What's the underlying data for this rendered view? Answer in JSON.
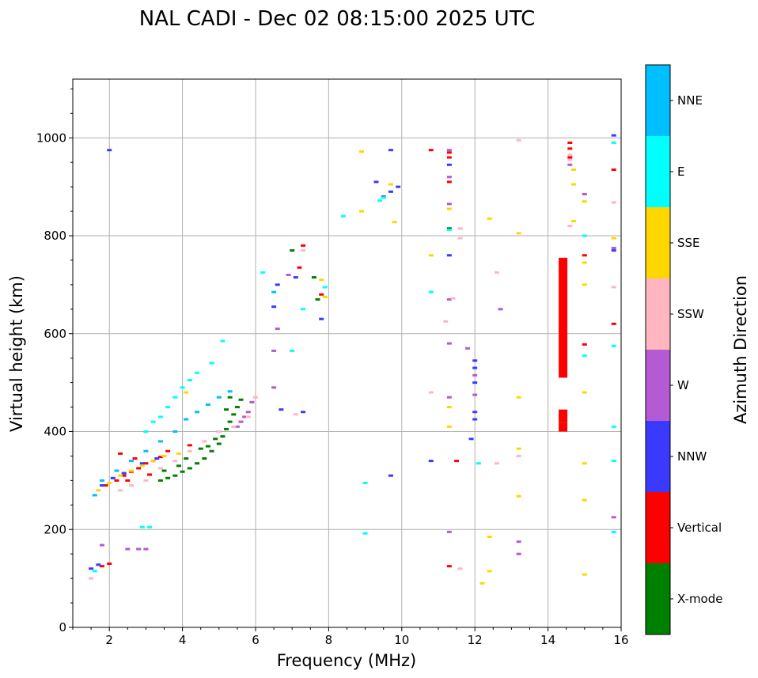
{
  "chart_data": {
    "type": "scatter",
    "title": "NAL CADI - Dec 02 08:15:00 2025 UTC",
    "xlabel": "Frequency (MHz)",
    "ylabel": "Virtual height (km)",
    "xlim": [
      1,
      16
    ],
    "ylim": [
      0,
      1120
    ],
    "xticks": [
      2,
      4,
      6,
      8,
      10,
      12,
      14,
      16
    ],
    "yticks": [
      0,
      200,
      400,
      600,
      800,
      1000
    ],
    "xtick_labels": [
      "2",
      "4",
      "6",
      "8",
      "10",
      "12",
      "14",
      "16"
    ],
    "ytick_labels": [
      "0",
      "200",
      "400",
      "600",
      "800",
      "1000"
    ],
    "grid": true,
    "colorbar": {
      "label": "Azimuth Direction",
      "categories": [
        {
          "name": "X-mode",
          "color": "#008000"
        },
        {
          "name": "Vertical",
          "color": "#ff0000"
        },
        {
          "name": "NNW",
          "color": "#3a3aff"
        },
        {
          "name": "W",
          "color": "#b45ad2"
        },
        {
          "name": "SSW",
          "color": "#ffb6c1"
        },
        {
          "name": "SSE",
          "color": "#ffd700"
        },
        {
          "name": "E",
          "color": "#00ffff"
        },
        {
          "name": "NNE",
          "color": "#00bfff"
        }
      ]
    },
    "series": [
      {
        "name": "X-mode",
        "color": "#008000",
        "points": [
          [
            3.4,
            300
          ],
          [
            3.6,
            305
          ],
          [
            3.8,
            310
          ],
          [
            4.0,
            318
          ],
          [
            4.2,
            325
          ],
          [
            4.4,
            335
          ],
          [
            4.6,
            345
          ],
          [
            4.8,
            360
          ],
          [
            5.0,
            375
          ],
          [
            5.1,
            390
          ],
          [
            5.2,
            405
          ],
          [
            5.3,
            420
          ],
          [
            5.4,
            435
          ],
          [
            5.5,
            450
          ],
          [
            5.6,
            465
          ],
          [
            5.3,
            470
          ],
          [
            3.5,
            320
          ],
          [
            4.1,
            345
          ],
          [
            4.5,
            365
          ],
          [
            4.9,
            385
          ],
          [
            5.0,
            400
          ],
          [
            5.2,
            445
          ],
          [
            4.7,
            370
          ],
          [
            3.9,
            330
          ],
          [
            7.6,
            715
          ],
          [
            7.7,
            670
          ],
          [
            11.3,
            815
          ],
          [
            7.0,
            770
          ]
        ]
      },
      {
        "name": "Vertical",
        "color": "#ff0000",
        "points": [
          [
            1.8,
            125
          ],
          [
            2.0,
            130
          ],
          [
            2.2,
            300
          ],
          [
            2.4,
            310
          ],
          [
            2.6,
            318
          ],
          [
            2.8,
            325
          ],
          [
            3.0,
            335
          ],
          [
            3.2,
            340
          ],
          [
            3.4,
            348
          ],
          [
            3.6,
            360
          ],
          [
            2.5,
            300
          ],
          [
            1.9,
            290
          ],
          [
            2.3,
            355
          ],
          [
            2.7,
            345
          ],
          [
            3.1,
            312
          ],
          [
            4.2,
            372
          ],
          [
            7.3,
            780
          ],
          [
            7.2,
            735
          ],
          [
            7.8,
            680
          ],
          [
            11.3,
            910
          ],
          [
            11.3,
            960
          ],
          [
            11.3,
            970
          ],
          [
            11.3,
            125
          ],
          [
            11.5,
            340
          ],
          [
            14.6,
            990
          ],
          [
            14.6,
            978
          ],
          [
            14.6,
            960
          ],
          [
            15.0,
            760
          ],
          [
            15.0,
            578
          ],
          [
            15.8,
            935
          ],
          [
            15.8,
            620
          ],
          [
            10.8,
            975
          ]
        ]
      },
      {
        "name": "NNW",
        "color": "#3a3aff",
        "points": [
          [
            1.5,
            120
          ],
          [
            1.7,
            128
          ],
          [
            2.0,
            975
          ],
          [
            1.8,
            290
          ],
          [
            2.1,
            305
          ],
          [
            2.4,
            315
          ],
          [
            2.9,
            335
          ],
          [
            3.3,
            345
          ],
          [
            6.6,
            700
          ],
          [
            6.5,
            655
          ],
          [
            6.7,
            445
          ],
          [
            7.1,
            715
          ],
          [
            7.3,
            440
          ],
          [
            7.8,
            630
          ],
          [
            9.3,
            910
          ],
          [
            9.5,
            880
          ],
          [
            9.7,
            890
          ],
          [
            9.9,
            900
          ],
          [
            9.7,
            975
          ],
          [
            9.7,
            310
          ],
          [
            10.8,
            340
          ],
          [
            11.3,
            945
          ],
          [
            11.3,
            760
          ],
          [
            12.0,
            530
          ],
          [
            12.0,
            500
          ],
          [
            12.0,
            440
          ],
          [
            12.0,
            425
          ],
          [
            12.0,
            545
          ],
          [
            11.9,
            385
          ],
          [
            15.8,
            1005
          ],
          [
            15.8,
            770
          ]
        ]
      },
      {
        "name": "W",
        "color": "#b45ad2",
        "points": [
          [
            1.8,
            168
          ],
          [
            2.5,
            160
          ],
          [
            2.8,
            160
          ],
          [
            3.0,
            160
          ],
          [
            5.6,
            420
          ],
          [
            5.7,
            430
          ],
          [
            5.8,
            440
          ],
          [
            5.9,
            460
          ],
          [
            5.5,
            410
          ],
          [
            6.5,
            490
          ],
          [
            6.5,
            565
          ],
          [
            6.6,
            610
          ],
          [
            6.9,
            720
          ],
          [
            11.3,
            975
          ],
          [
            11.3,
            920
          ],
          [
            11.3,
            865
          ],
          [
            11.3,
            670
          ],
          [
            11.3,
            580
          ],
          [
            11.3,
            195
          ],
          [
            11.8,
            570
          ],
          [
            12.0,
            475
          ],
          [
            12.0,
            515
          ],
          [
            12.7,
            650
          ],
          [
            13.2,
            175
          ],
          [
            13.2,
            150
          ],
          [
            14.6,
            945
          ],
          [
            15.0,
            885
          ],
          [
            15.8,
            225
          ],
          [
            15.8,
            775
          ],
          [
            11.3,
            470
          ]
        ]
      },
      {
        "name": "SSW",
        "color": "#ffb6c1",
        "points": [
          [
            2.3,
            280
          ],
          [
            2.6,
            290
          ],
          [
            3.0,
            300
          ],
          [
            3.4,
            325
          ],
          [
            3.8,
            340
          ],
          [
            4.2,
            360
          ],
          [
            4.6,
            380
          ],
          [
            5.0,
            400
          ],
          [
            5.4,
            410
          ],
          [
            5.8,
            430
          ],
          [
            6.0,
            470
          ],
          [
            7.1,
            435
          ],
          [
            7.3,
            770
          ],
          [
            11.2,
            625
          ],
          [
            11.4,
            672
          ],
          [
            11.6,
            815
          ],
          [
            11.6,
            795
          ],
          [
            12.6,
            335
          ],
          [
            12.6,
            725
          ],
          [
            13.2,
            995
          ],
          [
            13.2,
            350
          ],
          [
            14.6,
            965
          ],
          [
            14.6,
            955
          ],
          [
            14.6,
            820
          ],
          [
            15.8,
            868
          ],
          [
            15.8,
            695
          ],
          [
            10.8,
            480
          ],
          [
            11.6,
            120
          ],
          [
            1.5,
            100
          ]
        ]
      },
      {
        "name": "SSE",
        "color": "#ffd700",
        "points": [
          [
            1.7,
            280
          ],
          [
            2.0,
            295
          ],
          [
            2.3,
            310
          ],
          [
            2.6,
            320
          ],
          [
            2.9,
            330
          ],
          [
            3.2,
            340
          ],
          [
            3.5,
            350
          ],
          [
            3.9,
            355
          ],
          [
            4.1,
            480
          ],
          [
            7.8,
            710
          ],
          [
            7.9,
            675
          ],
          [
            8.9,
            972
          ],
          [
            8.9,
            850
          ],
          [
            9.7,
            905
          ],
          [
            9.8,
            828
          ],
          [
            10.8,
            760
          ],
          [
            11.3,
            410
          ],
          [
            11.3,
            450
          ],
          [
            11.3,
            855
          ],
          [
            12.4,
            835
          ],
          [
            12.4,
            185
          ],
          [
            12.4,
            115
          ],
          [
            12.2,
            90
          ],
          [
            13.2,
            805
          ],
          [
            13.2,
            470
          ],
          [
            13.2,
            365
          ],
          [
            13.2,
            268
          ],
          [
            14.7,
            935
          ],
          [
            14.7,
            905
          ],
          [
            14.7,
            830
          ],
          [
            15.0,
            870
          ],
          [
            15.0,
            745
          ],
          [
            15.0,
            700
          ],
          [
            15.0,
            480
          ],
          [
            15.0,
            335
          ],
          [
            15.0,
            260
          ],
          [
            15.0,
            108
          ],
          [
            15.8,
            795
          ]
        ]
      },
      {
        "name": "E",
        "color": "#00ffff",
        "points": [
          [
            1.6,
            115
          ],
          [
            2.9,
            205
          ],
          [
            3.1,
            205
          ],
          [
            3.0,
            400
          ],
          [
            3.2,
            420
          ],
          [
            3.4,
            430
          ],
          [
            3.6,
            450
          ],
          [
            3.8,
            470
          ],
          [
            4.0,
            490
          ],
          [
            4.2,
            505
          ],
          [
            4.4,
            520
          ],
          [
            4.8,
            540
          ],
          [
            5.1,
            585
          ],
          [
            6.2,
            725
          ],
          [
            7.0,
            565
          ],
          [
            7.3,
            650
          ],
          [
            8.4,
            840
          ],
          [
            9.0,
            295
          ],
          [
            9.0,
            192
          ],
          [
            9.4,
            872
          ],
          [
            9.5,
            878
          ],
          [
            10.8,
            685
          ],
          [
            11.3,
            812
          ],
          [
            12.1,
            335
          ],
          [
            15.0,
            800
          ],
          [
            15.0,
            555
          ],
          [
            15.8,
            990
          ],
          [
            15.8,
            575
          ],
          [
            15.8,
            410
          ],
          [
            15.8,
            340
          ],
          [
            15.8,
            195
          ],
          [
            7.9,
            695
          ]
        ]
      },
      {
        "name": "NNE",
        "color": "#00bfff",
        "points": [
          [
            1.6,
            270
          ],
          [
            1.8,
            300
          ],
          [
            2.2,
            320
          ],
          [
            2.6,
            340
          ],
          [
            3.0,
            360
          ],
          [
            3.4,
            380
          ],
          [
            3.8,
            400
          ],
          [
            4.1,
            425
          ],
          [
            4.4,
            440
          ],
          [
            4.7,
            455
          ],
          [
            5.0,
            470
          ],
          [
            5.3,
            482
          ],
          [
            6.5,
            685
          ]
        ]
      },
      {
        "name": "Vertical-block",
        "color": "#ff0000",
        "points": [
          [
            14.4,
            510
          ],
          [
            14.4,
            755
          ],
          [
            14.4,
            400
          ],
          [
            14.4,
            445
          ]
        ]
      }
    ]
  }
}
